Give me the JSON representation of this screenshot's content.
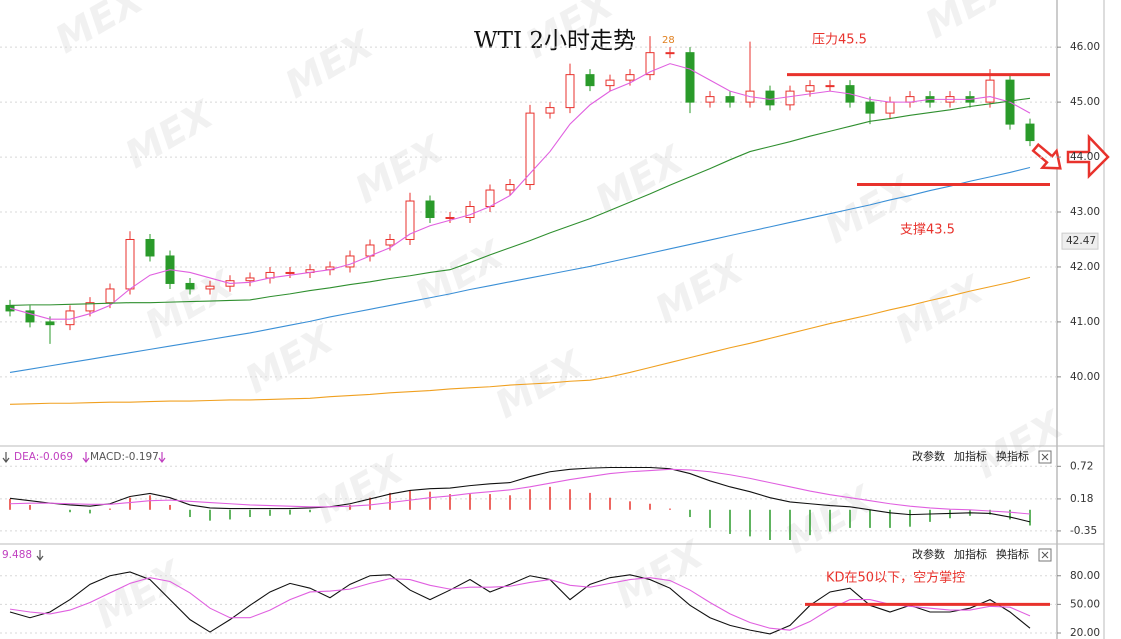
{
  "chart_data": [
    {
      "type": "candlestick",
      "title": "WTI 2小时走势",
      "grid": true,
      "up_color": "#e8322c",
      "down_color": "#2a9a2a",
      "ylim": [
        38.76,
        46.64
      ],
      "yticks": [
        {
          "value": 46,
          "label": "46.00"
        },
        {
          "value": 45,
          "label": "45.00"
        },
        {
          "value": 44,
          "label": "44.00"
        },
        {
          "value": 43,
          "label": "43.00"
        },
        {
          "value": 42,
          "label": "42.00"
        },
        {
          "value": 41,
          "label": "41.00"
        },
        {
          "value": 40,
          "label": "40.00"
        }
      ],
      "open": [
        41.3,
        41.2,
        41.0,
        40.95,
        41.2,
        41.35,
        41.6,
        42.5,
        42.2,
        41.7,
        41.6,
        41.65,
        41.75,
        41.8,
        41.9,
        41.9,
        41.95,
        42.0,
        42.2,
        42.4,
        42.5,
        43.2,
        42.9,
        42.9,
        43.1,
        43.4,
        43.5,
        44.8,
        44.9,
        45.5,
        45.3,
        45.4,
        45.5,
        45.9,
        45.9,
        45.0,
        45.1,
        45.0,
        45.2,
        44.95,
        45.2,
        45.3,
        45.3,
        45.0,
        44.8,
        45.0,
        45.1,
        45.0,
        45.1,
        45.0,
        45.4,
        44.6
      ],
      "high": [
        41.4,
        41.3,
        41.1,
        41.3,
        41.45,
        41.7,
        42.65,
        42.6,
        42.3,
        41.8,
        41.75,
        41.85,
        41.9,
        42,
        42,
        42.05,
        42.1,
        42.3,
        42.5,
        42.6,
        43.35,
        43.3,
        43,
        43.2,
        43.5,
        43.6,
        44.95,
        45,
        45.7,
        45.6,
        45.5,
        45.6,
        46.2,
        46,
        46,
        45.2,
        45.2,
        46.1,
        45.3,
        45.3,
        45.4,
        45.4,
        45.4,
        45.1,
        45.1,
        45.2,
        45.2,
        45.2,
        45.2,
        45.6,
        45.5,
        44.7
      ],
      "low": [
        41.1,
        40.9,
        40.6,
        40.85,
        41.1,
        41.25,
        41.5,
        42.1,
        41.6,
        41.5,
        41.5,
        41.55,
        41.65,
        41.7,
        41.8,
        41.8,
        41.85,
        41.9,
        42.1,
        42.3,
        42.4,
        42.8,
        42.8,
        42.8,
        43,
        43.3,
        43.4,
        44.7,
        44.8,
        45.2,
        45.2,
        45.3,
        45.4,
        45.8,
        44.8,
        44.9,
        44.9,
        44.9,
        44.85,
        44.85,
        45.1,
        45.2,
        44.9,
        44.6,
        44.7,
        44.9,
        44.9,
        44.9,
        44.9,
        44.9,
        44.5,
        44.2
      ],
      "close": [
        41.2,
        41.0,
        40.95,
        41.2,
        41.35,
        41.6,
        42.5,
        42.2,
        41.7,
        41.6,
        41.65,
        41.75,
        41.8,
        41.9,
        41.9,
        41.95,
        42.0,
        42.2,
        42.4,
        42.5,
        43.2,
        42.9,
        42.9,
        43.1,
        43.4,
        43.5,
        44.8,
        44.9,
        45.5,
        45.3,
        45.4,
        45.5,
        45.9,
        45.9,
        45.0,
        45.1,
        45.0,
        45.2,
        44.95,
        45.2,
        45.3,
        45.3,
        45.0,
        44.8,
        45.0,
        45.1,
        45.0,
        45.1,
        45.0,
        45.4,
        44.6,
        44.3
      ],
      "series": [
        {
          "color": "#e060e0",
          "values": [
            41.25,
            41.15,
            41.05,
            41.05,
            41.15,
            41.3,
            41.6,
            41.85,
            41.95,
            41.9,
            41.8,
            41.7,
            41.72,
            41.8,
            41.85,
            41.9,
            41.95,
            42.05,
            42.2,
            42.35,
            42.6,
            42.75,
            42.85,
            42.95,
            43.1,
            43.3,
            43.7,
            44.1,
            44.6,
            44.95,
            45.2,
            45.35,
            45.55,
            45.7,
            45.6,
            45.4,
            45.2,
            45.1,
            45.05,
            45.1,
            45.15,
            45.2,
            45.15,
            45.05,
            45.0,
            45.0,
            45.05,
            45.05,
            45.05,
            45.1,
            45.0,
            44.8
          ]
        },
        {
          "color": "#2f8f2f",
          "values": [
            41.3,
            41.31,
            41.31,
            41.32,
            41.33,
            41.34,
            41.35,
            41.35,
            41.36,
            41.37,
            41.38,
            41.39,
            41.4,
            41.46,
            41.51,
            41.57,
            41.62,
            41.68,
            41.73,
            41.79,
            41.84,
            41.9,
            41.95,
            42.08,
            42.22,
            42.35,
            42.48,
            42.62,
            42.75,
            42.88,
            43.03,
            43.18,
            43.33,
            43.49,
            43.64,
            43.79,
            43.95,
            44.1,
            44.19,
            44.28,
            44.38,
            44.47,
            44.56,
            44.65,
            44.7,
            44.76,
            44.81,
            44.86,
            44.92,
            44.97,
            45.02,
            45.07
          ]
        },
        {
          "color": "#3a8fd6",
          "values": [
            40.08,
            40.14,
            40.2,
            40.26,
            40.32,
            40.38,
            40.44,
            40.5,
            40.56,
            40.62,
            40.68,
            40.74,
            40.8,
            40.87,
            40.94,
            41.01,
            41.09,
            41.16,
            41.23,
            41.3,
            41.37,
            41.44,
            41.51,
            41.59,
            41.66,
            41.73,
            41.8,
            41.87,
            41.94,
            42.01,
            42.09,
            42.17,
            42.25,
            42.33,
            42.41,
            42.49,
            42.57,
            42.65,
            42.73,
            42.81,
            42.89,
            42.97,
            43.05,
            43.13,
            43.22,
            43.3,
            43.39,
            43.47,
            43.56,
            43.64,
            43.72,
            43.81
          ]
        },
        {
          "color": "#f0a020",
          "values": [
            39.5,
            39.51,
            39.52,
            39.52,
            39.53,
            39.54,
            39.54,
            39.55,
            39.56,
            39.56,
            39.57,
            39.58,
            39.58,
            39.59,
            39.6,
            39.61,
            39.64,
            39.66,
            39.68,
            39.71,
            39.73,
            39.75,
            39.78,
            39.8,
            39.82,
            39.85,
            39.87,
            39.89,
            39.92,
            39.94,
            40.0,
            40.08,
            40.17,
            40.26,
            40.35,
            40.44,
            40.53,
            40.61,
            40.7,
            40.79,
            40.88,
            40.97,
            41.05,
            41.13,
            41.22,
            41.3,
            41.39,
            41.47,
            41.56,
            41.64,
            41.72,
            41.81
          ]
        }
      ],
      "annotations": [
        {
          "text": "压力45.5",
          "value": 45.5,
          "color": "#e8322c"
        },
        {
          "text": "支撑43.5",
          "value": 43.5,
          "color": "#e8322c"
        }
      ],
      "price_label": {
        "value": 42.47,
        "label": "42.47"
      },
      "high_label": "28",
      "watermark": "MEX"
    },
    {
      "type": "macd",
      "grid": true,
      "ylim": [
        -0.55,
        0.99
      ],
      "yticks": [
        0.72,
        0.18,
        -0.35
      ],
      "legend": [
        {
          "text": "DEA:-0.069",
          "color": "#c040c0"
        },
        {
          "text": "MACD:-0.197",
          "color": "#555555"
        }
      ],
      "controls": [
        "改参数",
        "加指标",
        "换指标"
      ],
      "series": [
        {
          "color": "#111111",
          "values": [
            0.19,
            0.15,
            0.11,
            0.08,
            0.06,
            0.1,
            0.22,
            0.27,
            0.2,
            0.08,
            0.03,
            0.02,
            0.02,
            0.02,
            0.02,
            0.03,
            0.05,
            0.1,
            0.18,
            0.26,
            0.32,
            0.35,
            0.36,
            0.4,
            0.43,
            0.45,
            0.55,
            0.63,
            0.67,
            0.69,
            0.7,
            0.7,
            0.7,
            0.68,
            0.6,
            0.48,
            0.38,
            0.3,
            0.2,
            0.13,
            0.1,
            0.07,
            0.05,
            0.0,
            -0.05,
            -0.08,
            -0.07,
            -0.06,
            -0.05,
            -0.06,
            -0.12,
            -0.2
          ]
        },
        {
          "color": "#e060e0",
          "values": [
            0.1,
            0.11,
            0.11,
            0.1,
            0.09,
            0.09,
            0.12,
            0.15,
            0.16,
            0.14,
            0.12,
            0.1,
            0.08,
            0.07,
            0.06,
            0.05,
            0.05,
            0.06,
            0.08,
            0.12,
            0.16,
            0.2,
            0.23,
            0.27,
            0.3,
            0.33,
            0.38,
            0.44,
            0.5,
            0.55,
            0.6,
            0.63,
            0.65,
            0.67,
            0.66,
            0.63,
            0.58,
            0.52,
            0.45,
            0.38,
            0.31,
            0.25,
            0.2,
            0.15,
            0.1,
            0.06,
            0.03,
            0.01,
            0.0,
            -0.02,
            -0.04,
            -0.07
          ]
        }
      ],
      "histogram": {
        "up_color": "#e8322c",
        "down_color": "#2a9a2a",
        "values": [
          0.18,
          0.08,
          0.0,
          -0.04,
          -0.06,
          0.02,
          0.2,
          0.24,
          0.08,
          -0.12,
          -0.18,
          -0.16,
          -0.12,
          -0.1,
          -0.08,
          -0.04,
          0.0,
          0.08,
          0.2,
          0.28,
          0.32,
          0.3,
          0.26,
          0.26,
          0.26,
          0.24,
          0.34,
          0.38,
          0.34,
          0.28,
          0.2,
          0.14,
          0.1,
          0.02,
          -0.12,
          -0.3,
          -0.4,
          -0.44,
          -0.5,
          -0.5,
          -0.42,
          -0.36,
          -0.3,
          -0.3,
          -0.3,
          -0.28,
          -0.2,
          -0.14,
          -0.1,
          -0.08,
          -0.16,
          -0.26
        ]
      }
    },
    {
      "type": "kd",
      "grid": true,
      "ylim": [
        13.7,
        107
      ],
      "yticks": [
        {
          "value": 80,
          "label": "80.00"
        },
        {
          "value": 50,
          "label": "50.00"
        },
        {
          "value": 20,
          "label": "20.00"
        }
      ],
      "legend": [
        {
          "text": "9.488",
          "color": "#c040c0"
        }
      ],
      "controls": [
        "改参数",
        "加指标",
        "换指标"
      ],
      "series": [
        {
          "color": "#111111",
          "values": [
            42,
            36,
            42,
            55,
            71,
            80,
            84,
            76,
            55,
            34,
            21,
            34,
            49,
            63,
            72,
            67,
            57,
            71,
            80,
            81,
            65,
            55,
            65,
            76,
            63,
            71,
            80,
            76,
            55,
            71,
            78,
            81,
            76,
            67,
            49,
            36,
            28,
            23,
            19,
            28,
            49,
            63,
            67,
            49,
            42,
            49,
            42,
            42,
            46,
            55,
            42,
            25
          ]
        },
        {
          "color": "#e060e0",
          "values": [
            45,
            42,
            40,
            44,
            52,
            62,
            72,
            78,
            74,
            62,
            46,
            36,
            36,
            44,
            55,
            63,
            64,
            66,
            72,
            77,
            76,
            70,
            66,
            68,
            68,
            69,
            73,
            76,
            70,
            68,
            72,
            76,
            78,
            75,
            65,
            52,
            40,
            31,
            25,
            23,
            32,
            45,
            55,
            55,
            50,
            48,
            46,
            44,
            44,
            48,
            47,
            38
          ]
        }
      ],
      "annotations": [
        {
          "text": "KD在50以下，空方掌控",
          "value": 50,
          "color": "#e8322c"
        }
      ]
    }
  ]
}
